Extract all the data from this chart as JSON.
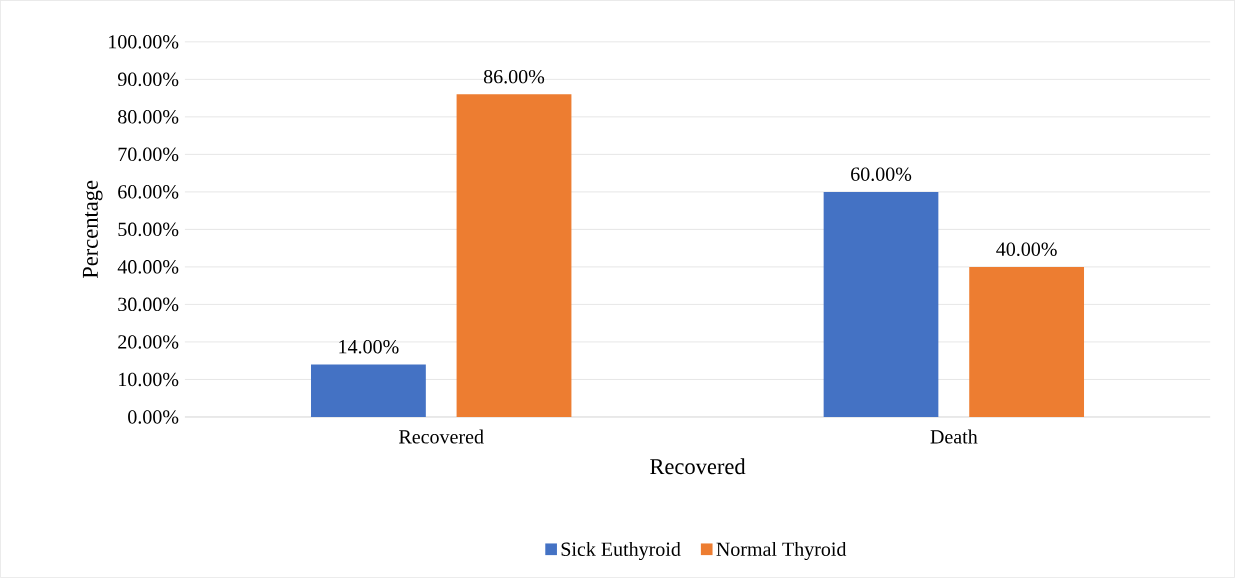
{
  "chart_data": {
    "type": "bar",
    "xlabel": "Recovered",
    "ylabel": "Percentage",
    "categories": [
      "Recovered",
      "Death"
    ],
    "series": [
      {
        "name": "Sick Euthyroid",
        "color": "#4472c4",
        "values": [
          14,
          60
        ],
        "value_labels": [
          "14.00%",
          "60.00%"
        ]
      },
      {
        "name": "Normal Thyroid",
        "color": "#ed7d31",
        "values": [
          86,
          40
        ],
        "value_labels": [
          "86.00%",
          "40.00%"
        ]
      }
    ],
    "ylim": [
      0,
      100
    ],
    "yticks": [
      {
        "value": 0,
        "label": "0.00%"
      },
      {
        "value": 10,
        "label": "10.00%"
      },
      {
        "value": 20,
        "label": "20.00%"
      },
      {
        "value": 30,
        "label": "30.00%"
      },
      {
        "value": 40,
        "label": "40.00%"
      },
      {
        "value": 50,
        "label": "50.00%"
      },
      {
        "value": 60,
        "label": "60.00%"
      },
      {
        "value": 70,
        "label": "70.00%"
      },
      {
        "value": 80,
        "label": "80.00%"
      },
      {
        "value": 90,
        "label": "90.00%"
      },
      {
        "value": 100,
        "label": "100.00%"
      }
    ],
    "grid": "y",
    "legend": "bottom"
  }
}
